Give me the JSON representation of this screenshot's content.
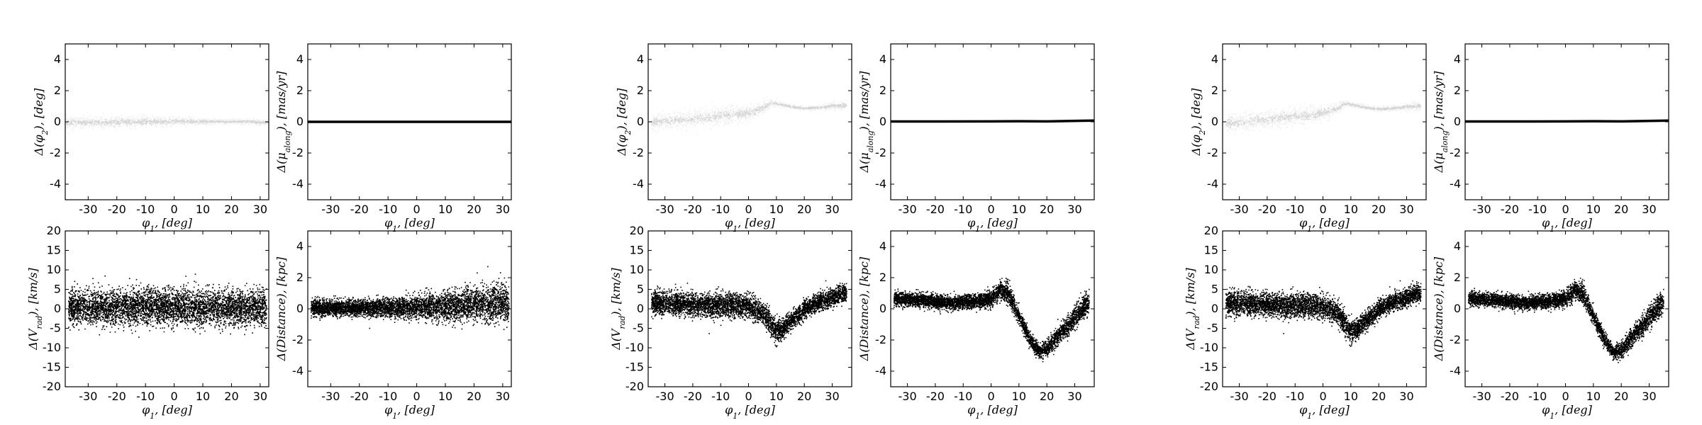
{
  "chart_data": [
    {
      "id": "p1",
      "group": 1,
      "row": 0,
      "col": 0,
      "type": "scatter",
      "style": "faint-band",
      "xlabel": "φ1, [deg]",
      "ylabel": "Δ(φ2), [deg]",
      "xlim": [
        -38,
        33
      ],
      "ylim": [
        -5,
        5
      ],
      "xticks": [
        -30,
        -20,
        -10,
        0,
        10,
        20,
        30
      ],
      "yticks": [
        -4,
        -2,
        0,
        2,
        4
      ],
      "x": [
        -38,
        -30,
        -20,
        -10,
        0,
        5,
        10,
        15,
        20,
        25,
        30,
        33
      ],
      "y": [
        0,
        0,
        0,
        0.05,
        0.05,
        0.05,
        0.05,
        0.05,
        0.05,
        0.05,
        0,
        0
      ],
      "spread": [
        0.2,
        0.2,
        0.2,
        0.2,
        0.15,
        0.12,
        0.1,
        0.08,
        0.08,
        0.08,
        0.1,
        0.1
      ]
    },
    {
      "id": "p2",
      "group": 1,
      "row": 0,
      "col": 1,
      "type": "line",
      "xlabel": "φ1, [deg]",
      "ylabel": "Δ(μ_along), [mas/yr]",
      "xlim": [
        -38,
        33
      ],
      "ylim": [
        -5,
        5
      ],
      "xticks": [
        -30,
        -20,
        -10,
        0,
        10,
        20,
        30
      ],
      "yticks": [
        -4,
        -2,
        0,
        2,
        4
      ],
      "x": [
        -38,
        33
      ],
      "y": [
        0,
        0
      ]
    },
    {
      "id": "p3",
      "group": 1,
      "row": 1,
      "col": 0,
      "type": "scatter",
      "style": "dense-band",
      "xlabel": "φ1, [deg]",
      "ylabel": "Δ(V_rad), [km/s]",
      "xlim": [
        -38,
        33
      ],
      "ylim": [
        -20,
        20
      ],
      "xticks": [
        -30,
        -20,
        -10,
        0,
        10,
        20,
        30
      ],
      "yticks": [
        -20,
        -15,
        -10,
        -5,
        0,
        5,
        10,
        15,
        20
      ],
      "x": [
        -37,
        -30,
        -20,
        -10,
        0,
        10,
        20,
        30,
        32
      ],
      "y": [
        0.5,
        0.5,
        0.5,
        0.5,
        0.5,
        0.5,
        0.5,
        0.5,
        0.5
      ],
      "spread": [
        3,
        3,
        3,
        3,
        3,
        3,
        3,
        3,
        3
      ]
    },
    {
      "id": "p4",
      "group": 1,
      "row": 1,
      "col": 1,
      "type": "scatter",
      "style": "dense-band",
      "xlabel": "φ1, [deg]",
      "ylabel": "Δ(Distance), [kpc]",
      "xlim": [
        -38,
        33
      ],
      "ylim": [
        -5,
        5
      ],
      "xticks": [
        -30,
        -20,
        -10,
        0,
        10,
        20,
        30
      ],
      "yticks": [
        -4,
        -2,
        0,
        2,
        4
      ],
      "x": [
        -37,
        -30,
        -20,
        -10,
        0,
        10,
        20,
        30,
        32
      ],
      "y": [
        0.1,
        0.1,
        0.1,
        0.1,
        0.15,
        0.2,
        0.3,
        0.4,
        0.3
      ],
      "spread": [
        0.35,
        0.35,
        0.35,
        0.4,
        0.5,
        0.6,
        0.7,
        0.8,
        0.8
      ]
    },
    {
      "id": "p5",
      "group": 2,
      "row": 0,
      "col": 0,
      "type": "scatter",
      "style": "faint-band",
      "xlabel": "φ1, [deg]",
      "ylabel": "Δ(φ2), [deg]",
      "xlim": [
        -36,
        37
      ],
      "ylim": [
        -5,
        5
      ],
      "xticks": [
        -30,
        -20,
        -10,
        0,
        10,
        20,
        30
      ],
      "yticks": [
        -4,
        -2,
        0,
        2,
        4
      ],
      "x": [
        -35,
        -25,
        -15,
        -5,
        0,
        5,
        8,
        10,
        15,
        20,
        25,
        30,
        35
      ],
      "y": [
        0,
        0.15,
        0.3,
        0.5,
        0.6,
        0.9,
        1.25,
        1.2,
        1.0,
        0.9,
        0.95,
        1.05,
        1.1
      ],
      "spread": [
        0.3,
        0.3,
        0.3,
        0.3,
        0.25,
        0.2,
        0.1,
        0.08,
        0.08,
        0.07,
        0.08,
        0.12,
        0.15
      ]
    },
    {
      "id": "p6",
      "group": 2,
      "row": 0,
      "col": 1,
      "type": "line",
      "xlabel": "φ1, [deg]",
      "ylabel": "Δ(μ_along), [mas/yr]",
      "xlim": [
        -36,
        37
      ],
      "ylim": [
        -5,
        5
      ],
      "xticks": [
        -30,
        -20,
        -10,
        0,
        10,
        20,
        30
      ],
      "yticks": [
        -4,
        -2,
        0,
        2,
        4
      ],
      "x": [
        -36,
        -20,
        0,
        10,
        20,
        37
      ],
      "y": [
        0.02,
        0.02,
        0.03,
        0.04,
        0.03,
        0.08
      ]
    },
    {
      "id": "p7",
      "group": 2,
      "row": 1,
      "col": 0,
      "type": "scatter",
      "style": "dense-band",
      "xlabel": "φ1, [deg]",
      "ylabel": "Δ(V_rad), [km/s]",
      "xlim": [
        -36,
        37
      ],
      "ylim": [
        -20,
        20
      ],
      "xticks": [
        -30,
        -20,
        -10,
        0,
        10,
        20,
        30
      ],
      "yticks": [
        -20,
        -15,
        -10,
        -5,
        0,
        5,
        10,
        15,
        20
      ],
      "x": [
        -35,
        -25,
        -15,
        -5,
        0,
        5,
        8,
        10,
        12,
        15,
        20,
        25,
        30,
        35
      ],
      "y": [
        1.5,
        1.5,
        1.0,
        1.0,
        0.8,
        -1,
        -4,
        -5.5,
        -5,
        -3,
        0,
        2,
        3,
        4.5
      ],
      "spread": [
        2,
        2,
        2,
        2,
        2,
        2,
        2,
        2,
        1.5,
        1.5,
        1.5,
        1.5,
        1.5,
        1.5
      ]
    },
    {
      "id": "p8",
      "group": 2,
      "row": 1,
      "col": 1,
      "type": "scatter",
      "style": "dense-band",
      "xlabel": "φ1, [deg]",
      "ylabel": "Δ(Distance), [kpc]",
      "xlim": [
        -36,
        37
      ],
      "ylim": [
        -5,
        5
      ],
      "xticks": [
        -30,
        -20,
        -10,
        0,
        10,
        20,
        30
      ],
      "yticks": [
        -4,
        -2,
        0,
        2,
        4
      ],
      "x": [
        -35,
        -25,
        -15,
        -5,
        0,
        3,
        6,
        10,
        14,
        17,
        20,
        25,
        30,
        35
      ],
      "y": [
        0.7,
        0.6,
        0.4,
        0.5,
        0.7,
        1.2,
        1.0,
        -0.5,
        -2.0,
        -2.7,
        -2.5,
        -1.5,
        -0.5,
        0.5
      ],
      "spread": [
        0.3,
        0.3,
        0.3,
        0.3,
        0.35,
        0.4,
        0.4,
        0.3,
        0.3,
        0.3,
        0.35,
        0.4,
        0.45,
        0.5
      ]
    },
    {
      "id": "p9",
      "group": 3,
      "row": 0,
      "col": 0,
      "type": "scatter",
      "style": "faint-band",
      "xlabel": "φ1, [deg]",
      "ylabel": "Δ(φ2), [deg]",
      "xlim": [
        -36,
        37
      ],
      "ylim": [
        -5,
        5
      ],
      "xticks": [
        -30,
        -20,
        -10,
        0,
        10,
        20,
        30
      ],
      "yticks": [
        -4,
        -2,
        0,
        2,
        4
      ],
      "x": [
        -35,
        -25,
        -15,
        -5,
        0,
        5,
        8,
        10,
        15,
        20,
        25,
        30,
        35
      ],
      "y": [
        -0.1,
        0.1,
        0.3,
        0.45,
        0.6,
        0.9,
        1.2,
        1.15,
        0.95,
        0.85,
        0.9,
        1.0,
        1.05
      ],
      "spread": [
        0.3,
        0.3,
        0.3,
        0.3,
        0.25,
        0.2,
        0.1,
        0.08,
        0.08,
        0.07,
        0.08,
        0.12,
        0.15
      ]
    },
    {
      "id": "p10",
      "group": 3,
      "row": 0,
      "col": 1,
      "type": "line",
      "xlabel": "φ1, [deg]",
      "ylabel": "Δ(μ_along), [mas/yr]",
      "xlim": [
        -36,
        37
      ],
      "ylim": [
        -5,
        5
      ],
      "xticks": [
        -30,
        -20,
        -10,
        0,
        10,
        20,
        30
      ],
      "yticks": [
        -4,
        -2,
        0,
        2,
        4
      ],
      "x": [
        -36,
        -20,
        0,
        10,
        20,
        37
      ],
      "y": [
        0.02,
        0.02,
        0.03,
        0.04,
        0.03,
        0.08
      ]
    },
    {
      "id": "p11",
      "group": 3,
      "row": 1,
      "col": 0,
      "type": "scatter",
      "style": "dense-band",
      "xlabel": "φ1, [deg]",
      "ylabel": "Δ(V_rad), [km/s]",
      "xlim": [
        -36,
        37
      ],
      "ylim": [
        -20,
        20
      ],
      "xticks": [
        -30,
        -20,
        -10,
        0,
        10,
        20,
        30
      ],
      "yticks": [
        -20,
        -15,
        -10,
        -5,
        0,
        5,
        10,
        15,
        20
      ],
      "x": [
        -35,
        -25,
        -15,
        -5,
        0,
        5,
        8,
        10,
        12,
        15,
        20,
        25,
        30,
        35
      ],
      "y": [
        1.5,
        1.5,
        1.0,
        1.0,
        0.8,
        -1,
        -4,
        -5.5,
        -5,
        -3,
        0,
        2,
        3,
        4.5
      ],
      "spread": [
        2,
        2,
        2,
        2,
        2,
        2,
        2,
        2,
        1.5,
        1.5,
        1.5,
        1.5,
        1.5,
        1.5
      ]
    },
    {
      "id": "p12",
      "group": 3,
      "row": 1,
      "col": 1,
      "type": "scatter",
      "style": "dense-band",
      "xlabel": "φ1, [deg]",
      "ylabel": "Δ(Distance), [kpc]",
      "xlim": [
        -36,
        37
      ],
      "ylim": [
        -5,
        5
      ],
      "xticks": [
        -30,
        -20,
        -10,
        0,
        10,
        20,
        30
      ],
      "yticks": [
        -4,
        -2,
        0,
        2,
        4
      ],
      "x": [
        -35,
        -25,
        -15,
        -5,
        0,
        3,
        6,
        10,
        14,
        17,
        20,
        25,
        30,
        35
      ],
      "y": [
        0.7,
        0.6,
        0.4,
        0.5,
        0.7,
        1.2,
        1.0,
        -0.5,
        -2.0,
        -2.8,
        -2.6,
        -1.5,
        -0.5,
        0.5
      ],
      "spread": [
        0.3,
        0.3,
        0.3,
        0.3,
        0.35,
        0.4,
        0.4,
        0.3,
        0.3,
        0.3,
        0.35,
        0.4,
        0.45,
        0.5
      ]
    }
  ]
}
